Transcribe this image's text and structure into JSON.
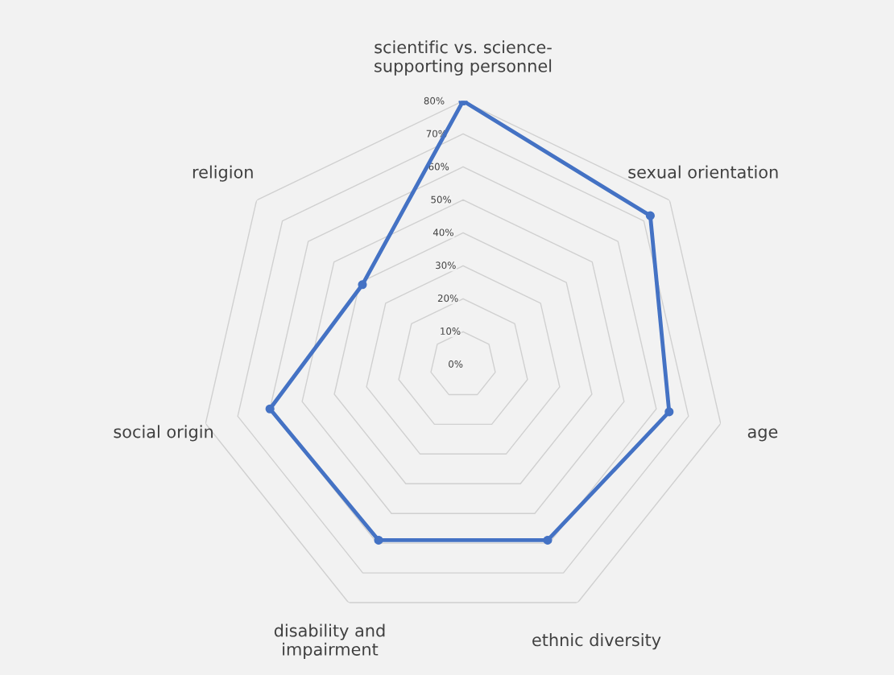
{
  "chart_data": {
    "type": "radar",
    "categories": [
      "scientific vs. science-\nsupporting personnel",
      "sexual orientation",
      "age",
      "ethnic diversity",
      "disability and\nimpairment",
      "social origin",
      "religion"
    ],
    "series": [
      {
        "color": "#4472c4",
        "values": [
          80,
          72.5,
          64,
          59,
          59,
          60,
          39
        ]
      }
    ],
    "ylim": [
      0,
      80
    ],
    "yticks": [
      {
        "value": 0,
        "label": "0%"
      },
      {
        "value": 10,
        "label": "10%"
      },
      {
        "value": 20,
        "label": "20%"
      },
      {
        "value": 30,
        "label": "30%"
      },
      {
        "value": 40,
        "label": "40%"
      },
      {
        "value": 50,
        "label": "50%"
      },
      {
        "value": 60,
        "label": "60%"
      },
      {
        "value": 70,
        "label": "70%"
      },
      {
        "value": 80,
        "label": "80%"
      }
    ],
    "grid": true,
    "marker": "circle",
    "line_style": "solid"
  }
}
